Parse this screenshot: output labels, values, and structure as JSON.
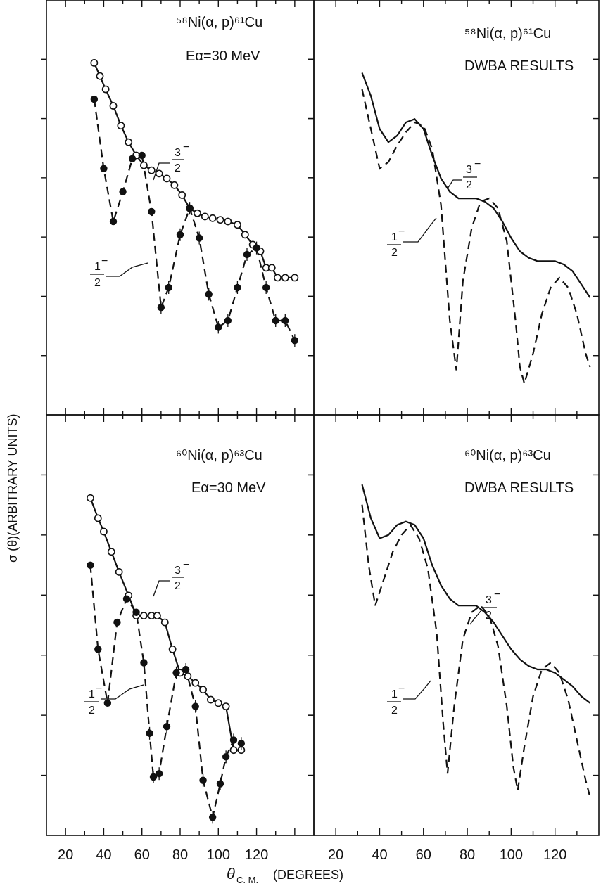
{
  "chart_data": [
    {
      "type": "scatter",
      "panel": "top-left",
      "title": "58Ni(α, p)61Cu",
      "subtitle": "Eα=30 MeV",
      "xlim": [
        10,
        150
      ],
      "xlabel": "θC. M. (DEGREES)",
      "ylabel": "σ (θ)(ARBITRARY UNITS)",
      "y_scale": "log",
      "series": [
        {
          "name": "3/2−",
          "marker": "open-circle",
          "line": "solid",
          "x": [
            35,
            38,
            41,
            45,
            49,
            53,
            57,
            61,
            65,
            69,
            73,
            77,
            81,
            85,
            89,
            93,
            97,
            101,
            105,
            110,
            114,
            118,
            122,
            125,
            128,
            131,
            135,
            140
          ],
          "y": [
            0.98,
            0.94,
            0.9,
            0.85,
            0.79,
            0.74,
            0.7,
            0.67,
            0.655,
            0.645,
            0.63,
            0.61,
            0.58,
            0.54,
            0.525,
            0.515,
            0.51,
            0.505,
            0.5,
            0.49,
            0.46,
            0.43,
            0.41,
            0.36,
            0.36,
            0.33,
            0.33,
            0.33
          ]
        },
        {
          "name": "1/2−",
          "marker": "filled-circle",
          "line": "dashed",
          "x": [
            35,
            40,
            45,
            50,
            55,
            60,
            65,
            70,
            74,
            80,
            85,
            90,
            95,
            100,
            105,
            110,
            115,
            120,
            125,
            130,
            135,
            140
          ],
          "y": [
            0.87,
            0.66,
            0.5,
            0.59,
            0.69,
            0.7,
            0.53,
            0.24,
            0.3,
            0.46,
            0.54,
            0.45,
            0.28,
            0.18,
            0.2,
            0.3,
            0.4,
            0.42,
            0.3,
            0.2,
            0.2,
            0.14
          ]
        }
      ],
      "tick_labels": [
        "20",
        "40",
        "60",
        "80",
        "100",
        "120"
      ],
      "tick_values": [
        20,
        40,
        60,
        80,
        100,
        120
      ]
    },
    {
      "type": "line",
      "panel": "top-right",
      "title": "58Ni(α, p)61Cu",
      "subtitle": "DWBA RESULTS",
      "xlim": [
        10,
        140
      ],
      "series": [
        {
          "name": "3/2−",
          "line": "solid",
          "x": [
            32,
            36,
            40,
            44,
            48,
            52,
            56,
            60,
            64,
            68,
            72,
            76,
            80,
            84,
            88,
            92,
            96,
            100,
            104,
            108,
            112,
            116,
            120,
            124,
            128,
            132,
            136
          ],
          "y": [
            0.95,
            0.88,
            0.78,
            0.74,
            0.76,
            0.8,
            0.81,
            0.78,
            0.7,
            0.63,
            0.59,
            0.57,
            0.57,
            0.57,
            0.56,
            0.54,
            0.5,
            0.45,
            0.41,
            0.39,
            0.38,
            0.38,
            0.38,
            0.37,
            0.35,
            0.31,
            0.27
          ]
        },
        {
          "name": "1/2−",
          "line": "dashed",
          "x": [
            32,
            36,
            40,
            44,
            48,
            52,
            56,
            60,
            64,
            68,
            72,
            75,
            78,
            82,
            86,
            90,
            94,
            98,
            102,
            104,
            106,
            110,
            114,
            118,
            122,
            126,
            130,
            134,
            136
          ],
          "y": [
            0.9,
            0.78,
            0.66,
            0.68,
            0.73,
            0.77,
            0.8,
            0.79,
            0.72,
            0.55,
            0.2,
            0.05,
            0.32,
            0.48,
            0.56,
            0.57,
            0.54,
            0.44,
            0.2,
            0.06,
            0.01,
            0.1,
            0.22,
            0.3,
            0.33,
            0.3,
            0.22,
            0.1,
            0.06
          ]
        }
      ],
      "tick_labels": [
        "20",
        "40",
        "60",
        "80",
        "100",
        "120"
      ],
      "tick_values": [
        20,
        40,
        60,
        80,
        100,
        120
      ]
    },
    {
      "type": "scatter",
      "panel": "bottom-left",
      "title": "60Ni(α, p)63Cu",
      "subtitle": "Eα=30 MeV",
      "xlim": [
        10,
        150
      ],
      "series": [
        {
          "name": "3/2−",
          "marker": "open-circle",
          "line": "solid",
          "x": [
            33,
            37,
            40,
            44,
            48,
            53,
            57,
            61,
            65,
            68,
            72,
            76,
            80,
            84,
            88,
            92,
            96,
            100,
            104,
            108,
            112
          ],
          "y": [
            0.92,
            0.86,
            0.82,
            0.76,
            0.7,
            0.63,
            0.57,
            0.57,
            0.57,
            0.57,
            0.55,
            0.47,
            0.4,
            0.39,
            0.37,
            0.35,
            0.32,
            0.31,
            0.3,
            0.17,
            0.17
          ]
        },
        {
          "name": "1/2−",
          "marker": "filled-circle",
          "line": "dashed",
          "x": [
            33,
            37,
            42,
            47,
            52,
            57,
            61,
            64,
            66,
            69,
            73,
            78,
            83,
            88,
            92,
            97,
            101,
            104,
            108,
            112
          ],
          "y": [
            0.72,
            0.47,
            0.31,
            0.55,
            0.62,
            0.58,
            0.43,
            0.22,
            0.09,
            0.1,
            0.24,
            0.4,
            0.41,
            0.3,
            0.08,
            -0.03,
            0.07,
            0.15,
            0.2,
            0.19
          ]
        }
      ],
      "tick_labels": [
        "20",
        "40",
        "60",
        "80",
        "100",
        "120"
      ],
      "tick_values": [
        20,
        40,
        60,
        80,
        100,
        120
      ]
    },
    {
      "type": "line",
      "panel": "bottom-right",
      "title": "60Ni(α, p)63Cu",
      "subtitle": "DWBA RESULTS",
      "xlim": [
        10,
        140
      ],
      "series": [
        {
          "name": "3/2−",
          "line": "solid",
          "x": [
            32,
            36,
            40,
            44,
            48,
            52,
            56,
            60,
            64,
            68,
            72,
            76,
            80,
            84,
            88,
            92,
            96,
            100,
            104,
            108,
            112,
            116,
            120,
            124,
            128,
            132,
            136
          ],
          "y": [
            0.96,
            0.86,
            0.8,
            0.81,
            0.84,
            0.85,
            0.84,
            0.8,
            0.72,
            0.66,
            0.62,
            0.6,
            0.6,
            0.6,
            0.58,
            0.55,
            0.51,
            0.47,
            0.44,
            0.42,
            0.41,
            0.41,
            0.4,
            0.38,
            0.36,
            0.33,
            0.31
          ]
        },
        {
          "name": "1/2−",
          "line": "dashed",
          "x": [
            32,
            35,
            38,
            42,
            46,
            50,
            54,
            58,
            62,
            66,
            69,
            71,
            74,
            78,
            82,
            86,
            90,
            94,
            98,
            101,
            103,
            106,
            110,
            114,
            118,
            122,
            126,
            130,
            134,
            136
          ],
          "y": [
            0.9,
            0.72,
            0.6,
            0.68,
            0.76,
            0.81,
            0.84,
            0.8,
            0.71,
            0.52,
            0.25,
            0.1,
            0.3,
            0.5,
            0.58,
            0.6,
            0.57,
            0.48,
            0.3,
            0.12,
            0.05,
            0.18,
            0.33,
            0.41,
            0.43,
            0.4,
            0.32,
            0.2,
            0.08,
            0.03
          ]
        }
      ],
      "tick_labels": [
        "20",
        "40",
        "60",
        "80",
        "100",
        "120"
      ],
      "tick_values": [
        20,
        40,
        60,
        80,
        100,
        120
      ]
    }
  ],
  "labels": {
    "tl_reaction": "⁵⁸Ni(α, p)⁶¹Cu",
    "tl_energy": "Eα=30 MeV",
    "tr_reaction": "⁵⁸Ni(α, p)⁶¹Cu",
    "tr_dwba": "DWBA RESULTS",
    "bl_reaction": "⁶⁰Ni(α, p)⁶³Cu",
    "bl_energy": "Eα=30 MeV",
    "br_reaction": "⁶⁰Ni(α, p)⁶³Cu",
    "br_dwba": "DWBA RESULTS",
    "frac_3_num": "3",
    "frac_3_den": "2",
    "frac_1_num": "1",
    "frac_1_den": "2",
    "frac_sign": "−",
    "y_axis": "σ (θ)(ARBITRARY UNITS)",
    "x_axis": "θC. M. (DEGREES)",
    "x_axis_theta": "θ",
    "x_axis_sub": "C. M.",
    "x_axis_unit": "(DEGREES)"
  }
}
